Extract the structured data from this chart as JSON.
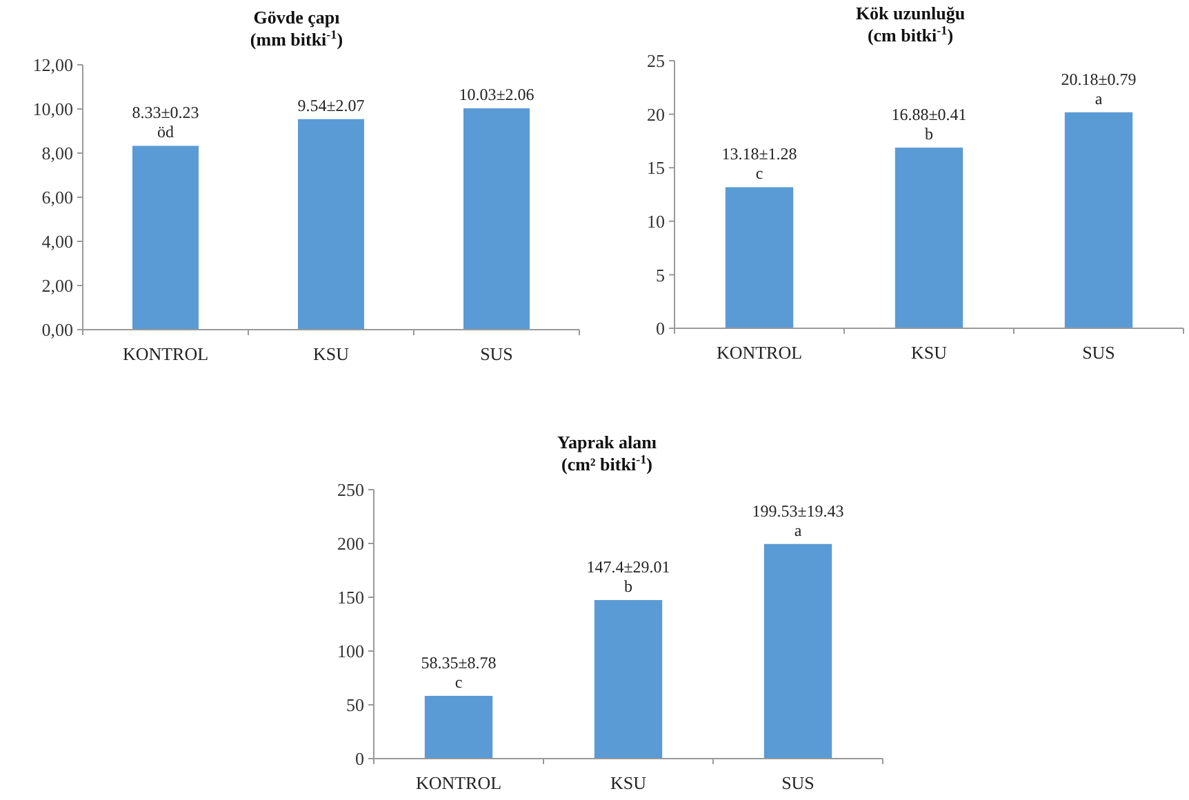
{
  "chart_data": [
    {
      "type": "bar",
      "title": "Gövde çapı",
      "subtitle": "(mm bitki$^{-1}$)",
      "categories": [
        "KONTROL",
        "KSU",
        "SUS"
      ],
      "values": [
        8.33,
        9.54,
        10.03
      ],
      "color": "#5b9bd5",
      "value_labels": [
        "8.33±0.23\nöd",
        "9.54±2.07",
        "10.03±2.06"
      ],
      "ylim": [
        0,
        12
      ],
      "yticks": [
        {
          "value": 0,
          "label": "0,00"
        },
        {
          "value": 2,
          "label": "2,00"
        },
        {
          "value": 4,
          "label": "4,00"
        },
        {
          "value": 6,
          "label": "6,00"
        },
        {
          "value": 8,
          "label": "8,00"
        },
        {
          "value": 10,
          "label": "10,00"
        },
        {
          "value": 12,
          "label": "12,00"
        }
      ]
    },
    {
      "type": "bar",
      "title": "Kök uzunluğu",
      "subtitle": "(cm bitki$^{-1}$)",
      "categories": [
        "KONTROL",
        "KSU",
        "SUS"
      ],
      "values": [
        13.18,
        16.88,
        20.18
      ],
      "color": "#5b9bd5",
      "value_labels": [
        "13.18±1.28\nc",
        "16.88±0.41\nb",
        "20.18±0.79\na"
      ],
      "ylim": [
        0,
        25
      ],
      "yticks": [
        0,
        5,
        10,
        15,
        20,
        25
      ]
    },
    {
      "type": "bar",
      "title": "Yaprak alanı",
      "subtitle": "(cm² bitki$^{-1}$)",
      "categories": [
        "KONTROL",
        "KSU",
        "SUS"
      ],
      "values": [
        58.35,
        147.4,
        199.53
      ],
      "color": "#5b9bd5",
      "value_labels": [
        "58.35±8.78\nc",
        "147.4±29.01\nb",
        "199.53±19.43\na"
      ],
      "ylim": [
        0,
        250
      ],
      "yticks": [
        0,
        50,
        100,
        150,
        200,
        250
      ]
    }
  ]
}
